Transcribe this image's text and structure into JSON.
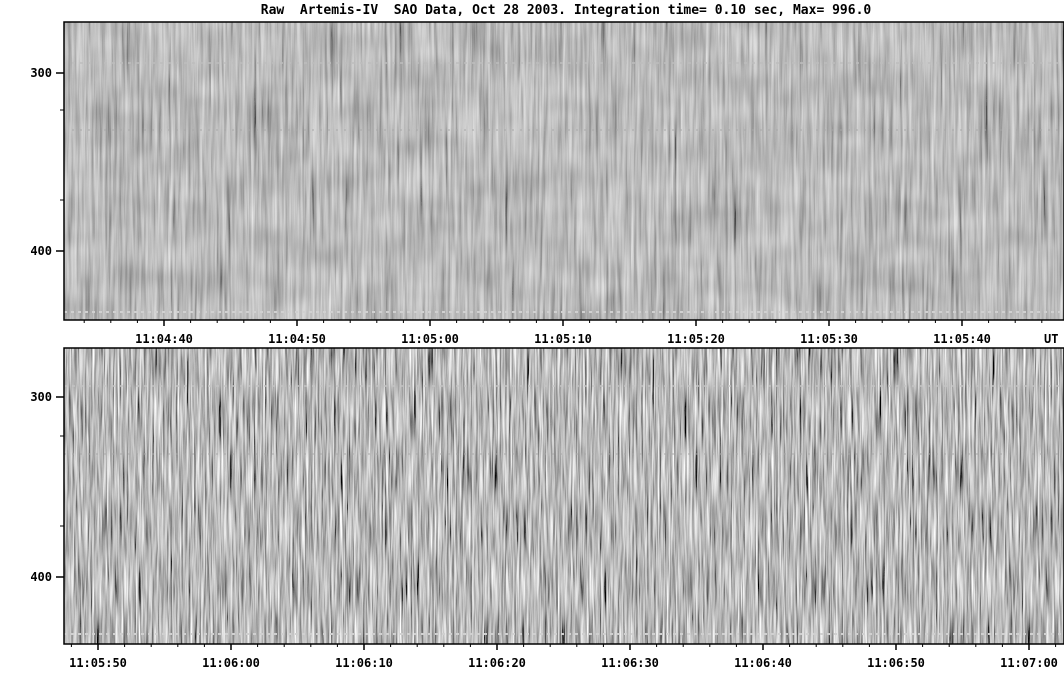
{
  "title": "Raw  Artemis-IV  SAO Data, Oct 28 2003. Integration time= 0.10 sec, Max= 996.0",
  "chart_data": [
    {
      "type": "heatmap",
      "panel": "top",
      "colormap": "grayscale",
      "y_ticks": [
        "300",
        "400"
      ],
      "y_range": [
        273,
        436
      ],
      "x_ticks": [
        "11:04:40",
        "11:04:50",
        "11:05:00",
        "11:05:10",
        "11:05:20",
        "11:05:30",
        "11:05:40"
      ],
      "x_unit_label": "UT"
    },
    {
      "type": "heatmap",
      "panel": "bottom",
      "colormap": "grayscale",
      "y_ticks": [
        "300",
        "400"
      ],
      "y_range": [
        273,
        436
      ],
      "x_ticks": [
        "11:05:50",
        "11:06:00",
        "11:06:10",
        "11:06:20",
        "11:06:30",
        "11:06:40",
        "11:06:50",
        "11:07:00"
      ]
    }
  ]
}
